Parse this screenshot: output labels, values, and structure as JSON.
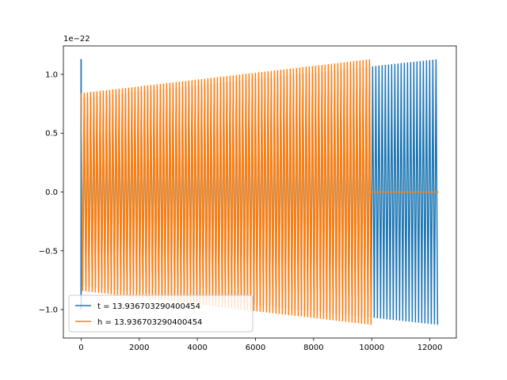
{
  "chart_data": {
    "type": "line",
    "title": "",
    "xlabel": "",
    "ylabel": "",
    "offset_label": "1e−22",
    "xlim": [
      -610,
      12910
    ],
    "ylim": [
      -1.242,
      1.242
    ],
    "x_ticks": [
      0,
      2000,
      4000,
      6000,
      8000,
      10000,
      12000
    ],
    "x_tick_labels": [
      "0",
      "2000",
      "4000",
      "6000",
      "8000",
      "10000",
      "12000"
    ],
    "y_ticks": [
      -1.0,
      -0.5,
      0.0,
      0.5,
      1.0
    ],
    "y_tick_labels": [
      "−1.0",
      "−0.5",
      "0.0",
      "0.5",
      "1.0"
    ],
    "grid": false,
    "legend_position": "lower-left",
    "series": [
      {
        "name": "t = 13.936703290400454",
        "color": "#1f77b4",
        "style": "dense oscillation with growing amplitude",
        "x_range": [
          0,
          12300
        ],
        "amplitude_start": 0.8,
        "amplitude_end": 1.13,
        "spike": {
          "x": 0,
          "y_max": 1.13,
          "y_min": -1.0
        }
      },
      {
        "name": "h = 13.936703290400454",
        "color": "#ff7f0e",
        "style": "dense oscillation with growing amplitude, then flat zero",
        "x_range": [
          0,
          10000
        ],
        "amplitude_start": 0.84,
        "amplitude_end": 1.13,
        "zero_tail": [
          10000,
          12300
        ]
      }
    ]
  }
}
